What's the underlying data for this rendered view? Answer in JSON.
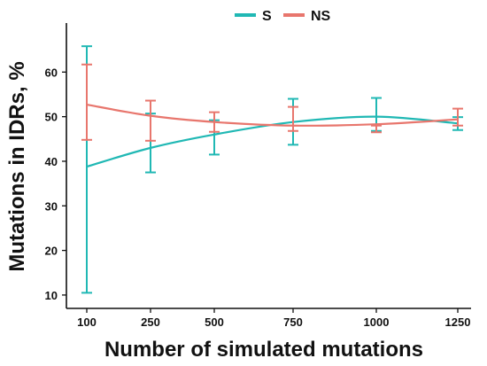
{
  "chart_data": {
    "type": "line",
    "xlabel": "Number of simulated mutations",
    "ylabel": "Mutations in IDRs, %",
    "categories": [
      "100",
      "250",
      "500",
      "750",
      "1000",
      "1250"
    ],
    "yticks": [
      10,
      20,
      30,
      40,
      50,
      60
    ],
    "ylim": [
      7,
      71
    ],
    "grid": false,
    "legend_position": "top-center",
    "series": [
      {
        "name": "S",
        "color": "#20b8b4",
        "values": [
          38.8,
          43.0,
          46.0,
          48.8,
          50.0,
          48.5
        ],
        "error_low": [
          10.5,
          37.5,
          41.5,
          43.7,
          46.8,
          47.0
        ],
        "error_high": [
          65.8,
          50.7,
          49.2,
          54.0,
          54.2,
          49.9
        ]
      },
      {
        "name": "NS",
        "color": "#e8766d",
        "values": [
          52.7,
          50.2,
          48.8,
          48.0,
          48.3,
          49.4
        ],
        "error_low": [
          44.8,
          44.6,
          46.6,
          46.8,
          46.5,
          48.0
        ],
        "error_high": [
          61.7,
          53.6,
          51.0,
          52.2,
          48.0,
          51.8
        ]
      }
    ]
  }
}
